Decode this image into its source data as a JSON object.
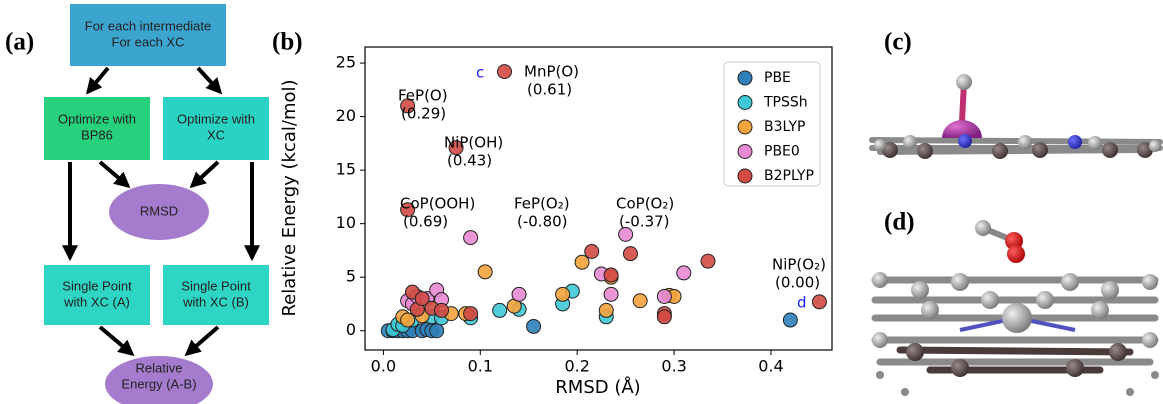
{
  "panel_labels": [
    "(a)",
    "(b)",
    "(c)",
    "(d)"
  ],
  "flowchart": {
    "nodes": [
      {
        "lines": [
          "For each intermediate",
          "For each XC"
        ]
      },
      {
        "lines": [
          "Optimize with",
          "BP86"
        ]
      },
      {
        "lines": [
          "Optimize with",
          "XC"
        ]
      },
      {
        "lines": [
          "RMSD"
        ]
      },
      {
        "lines": [
          "Single Point",
          "with XC (A)"
        ]
      },
      {
        "lines": [
          "Single Point",
          "with XC (B)"
        ]
      },
      {
        "lines": [
          "Relative",
          "Energy (A-B)"
        ]
      }
    ]
  },
  "chart_data": {
    "type": "scatter",
    "x_label": "RMSD (Å)",
    "y_label": "Relative Energy (kcal/mol)",
    "xlim": [
      -0.019,
      0.463
    ],
    "ylim": [
      -1.8,
      26.5
    ],
    "xticks": [
      {
        "value": 0,
        "label": "0.0"
      },
      0.1,
      0.2,
      0.3,
      0.4
    ],
    "yticks": [
      0,
      5,
      10,
      15,
      20,
      25
    ],
    "legend": "upper right",
    "series": [
      {
        "name": "PBE",
        "color": "#2f7fb8",
        "x": [
          0.005,
          0.01,
          0.015,
          0.02,
          0.025,
          0.03,
          0.04,
          0.045,
          0.05,
          0.055,
          0.155,
          0.42
        ],
        "values": [
          0,
          0,
          0,
          0,
          0,
          0,
          0,
          0.1,
          0,
          0,
          0.4,
          1.0
        ]
      },
      {
        "name": "TPSSh",
        "color": "#3ec9d6",
        "x": [
          0.01,
          0.015,
          0.02,
          0.03,
          0.05,
          0.06,
          0.09,
          0.12,
          0.14,
          0.185,
          0.195,
          0.23
        ],
        "values": [
          0.1,
          0.6,
          0.5,
          1.0,
          1.3,
          1.2,
          1.2,
          1.9,
          2.0,
          2.5,
          3.7,
          1.3
        ]
      },
      {
        "name": "B3LYP",
        "color": "#f5a33c",
        "x": [
          0.02,
          0.025,
          0.04,
          0.07,
          0.085,
          0.105,
          0.135,
          0.185,
          0.205,
          0.23,
          0.235,
          0.265,
          0.295,
          0.3
        ],
        "values": [
          1.3,
          1.0,
          1.4,
          1.6,
          1.6,
          5.5,
          2.3,
          3.4,
          6.4,
          1.9,
          5.0,
          2.8,
          3.3,
          3.2
        ]
      },
      {
        "name": "PBE0",
        "color": "#e78ad2",
        "x": [
          0.025,
          0.03,
          0.035,
          0.045,
          0.055,
          0.06,
          0.09,
          0.14,
          0.225,
          0.235,
          0.25,
          0.29,
          0.31
        ],
        "values": [
          2.8,
          2.5,
          3.2,
          3.0,
          3.8,
          2.9,
          8.7,
          3.4,
          5.3,
          3.4,
          9.0,
          3.2,
          5.4
        ]
      },
      {
        "name": "B2PLYP",
        "color": "#d24a44",
        "x": [
          0.025,
          0.125,
          0.075,
          0.025,
          0.03,
          0.035,
          0.04,
          0.05,
          0.06,
          0.09,
          0.215,
          0.235,
          0.255,
          0.29,
          0.29,
          0.335,
          0.45
        ],
        "values": [
          21.0,
          24.2,
          17.1,
          11.3,
          3.6,
          2.0,
          3.0,
          2.1,
          1.9,
          1.6,
          7.4,
          5.2,
          7.2,
          1.6,
          1.3,
          6.5,
          2.7
        ]
      }
    ],
    "annotations": [
      {
        "lines": [
          "MnP(O)",
          "(0.61)"
        ]
      },
      {
        "lines": [
          "FeP(O)",
          "(0.29)"
        ]
      },
      {
        "lines": [
          "NiP(OH)",
          "(0.43)"
        ]
      },
      {
        "lines": [
          "CoP(OOH)",
          "(0.69)"
        ]
      },
      {
        "lines": [
          "FeP(O₂)",
          "(-0.80)"
        ]
      },
      {
        "lines": [
          "CoP(O₂)",
          "(-0.37)"
        ]
      },
      {
        "lines": [
          "NiP(O₂)",
          "(0.00)"
        ]
      },
      {
        "lines": [
          "c"
        ],
        "color": "#1a1aff"
      },
      {
        "lines": [
          "d"
        ],
        "color": "#1a1aff"
      }
    ]
  }
}
